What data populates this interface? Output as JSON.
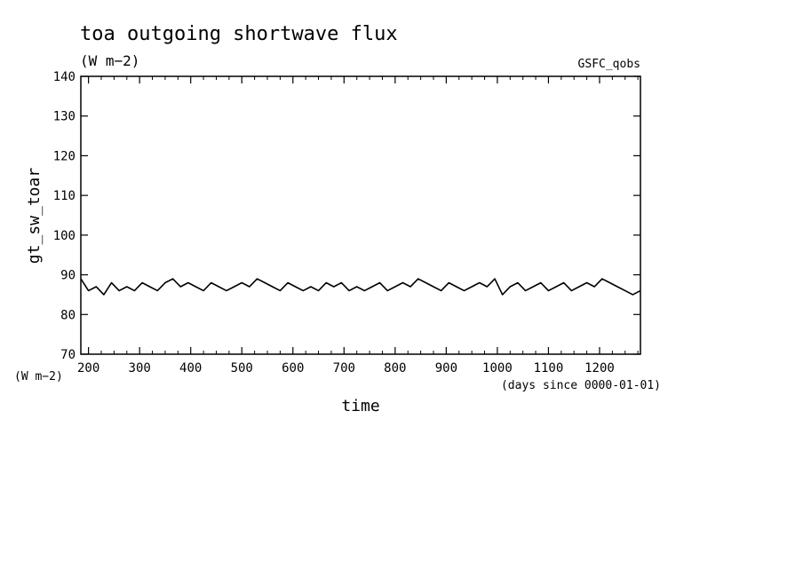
{
  "chart_data": {
    "type": "line",
    "title": "toa outgoing shortwave flux",
    "subtitle": "(W m−2)",
    "source_label": "GSFC_qobs",
    "xlabel": "time",
    "x_units": "(days since 0000-01-01)",
    "ylabel": "gt_sw_toar",
    "y_units": "(W m−2)",
    "xlim": [
      185,
      1280
    ],
    "ylim": [
      70,
      140
    ],
    "x_ticks": [
      200,
      300,
      400,
      500,
      600,
      700,
      800,
      900,
      1000,
      1100,
      1200
    ],
    "y_ticks": [
      70,
      80,
      90,
      100,
      110,
      120,
      130,
      140
    ],
    "grid": false,
    "line_color": "#000000",
    "series": [
      {
        "x": [
          185,
          200,
          215,
          230,
          245,
          260,
          275,
          290,
          305,
          320,
          335,
          350,
          365,
          380,
          395,
          410,
          425,
          440,
          455,
          470,
          485,
          500,
          515,
          530,
          545,
          560,
          575,
          590,
          605,
          620,
          635,
          650,
          665,
          680,
          695,
          710,
          725,
          740,
          755,
          770,
          785,
          800,
          815,
          830,
          845,
          860,
          875,
          890,
          905,
          920,
          935,
          950,
          965,
          980,
          995,
          1010,
          1025,
          1040,
          1055,
          1070,
          1085,
          1100,
          1115,
          1130,
          1145,
          1160,
          1175,
          1190,
          1205,
          1220,
          1235,
          1250,
          1265,
          1280
        ],
        "y": [
          89,
          86,
          87,
          85,
          88,
          86,
          87,
          86,
          88,
          87,
          86,
          88,
          89,
          87,
          88,
          87,
          86,
          88,
          87,
          86,
          87,
          88,
          87,
          89,
          88,
          87,
          86,
          88,
          87,
          86,
          87,
          86,
          88,
          87,
          88,
          86,
          87,
          86,
          87,
          88,
          86,
          87,
          88,
          87,
          89,
          88,
          87,
          86,
          88,
          87,
          86,
          87,
          88,
          87,
          89,
          85,
          87,
          88,
          86,
          87,
          88,
          86,
          87,
          88,
          86,
          87,
          88,
          87,
          89,
          88,
          87,
          86,
          85,
          86
        ]
      }
    ]
  }
}
